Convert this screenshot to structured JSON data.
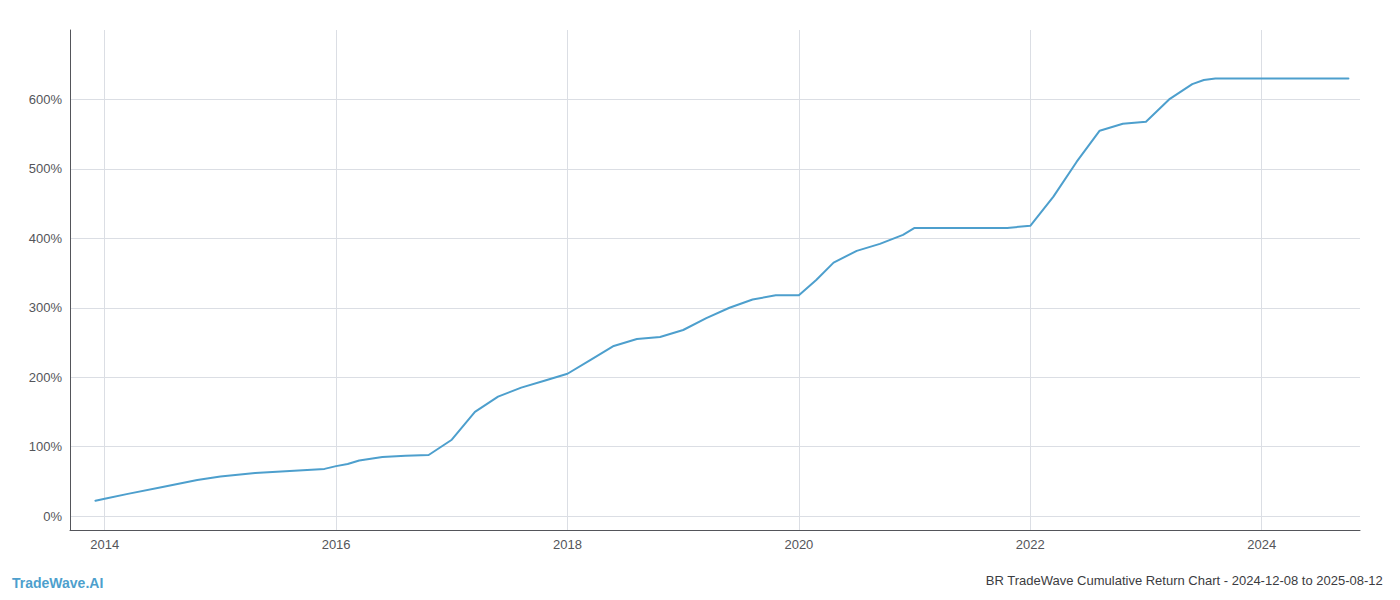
{
  "chart_data": {
    "type": "line",
    "title": "BR TradeWave Cumulative Return Chart - 2024-12-08 to 2025-08-12",
    "annotations": [
      "TradeWave.AI"
    ],
    "color": "#4d9fcd",
    "grid": true,
    "x": [
      2013.92,
      2014.0,
      2014.2,
      2014.5,
      2014.8,
      2015.0,
      2015.3,
      2015.6,
      2015.9,
      2016.0,
      2016.1,
      2016.2,
      2016.4,
      2016.6,
      2016.8,
      2017.0,
      2017.2,
      2017.4,
      2017.6,
      2017.8,
      2018.0,
      2018.2,
      2018.4,
      2018.6,
      2018.8,
      2019.0,
      2019.2,
      2019.4,
      2019.6,
      2019.8,
      2020.0,
      2020.15,
      2020.3,
      2020.5,
      2020.7,
      2020.9,
      2021.0,
      2021.2,
      2021.4,
      2021.6,
      2021.8,
      2022.0,
      2022.2,
      2022.4,
      2022.6,
      2022.8,
      2023.0,
      2023.2,
      2023.4,
      2023.5,
      2023.6,
      2023.8,
      2024.0,
      2024.5,
      2024.75
    ],
    "values": [
      22,
      25,
      32,
      42,
      52,
      57,
      62,
      65,
      68,
      72,
      75,
      80,
      85,
      87,
      88,
      110,
      150,
      172,
      185,
      195,
      205,
      225,
      245,
      255,
      258,
      268,
      285,
      300,
      312,
      318,
      318,
      340,
      365,
      382,
      392,
      405,
      415,
      415,
      415,
      415,
      415,
      418,
      460,
      510,
      555,
      565,
      568,
      600,
      622,
      628,
      630,
      630,
      630,
      630,
      630
    ],
    "xlim": [
      2013.7,
      2024.85
    ],
    "xticks": [
      2014,
      2016,
      2018,
      2020,
      2022,
      2024
    ],
    "ylim": [
      -20,
      700
    ],
    "yticks": [
      {
        "value": 0,
        "label": "0%"
      },
      {
        "value": 100,
        "label": "100%"
      },
      {
        "value": 200,
        "label": "200%"
      },
      {
        "value": 300,
        "label": "300%"
      },
      {
        "value": 400,
        "label": "400%"
      },
      {
        "value": 500,
        "label": "500%"
      },
      {
        "value": 600,
        "label": "600%"
      }
    ]
  }
}
